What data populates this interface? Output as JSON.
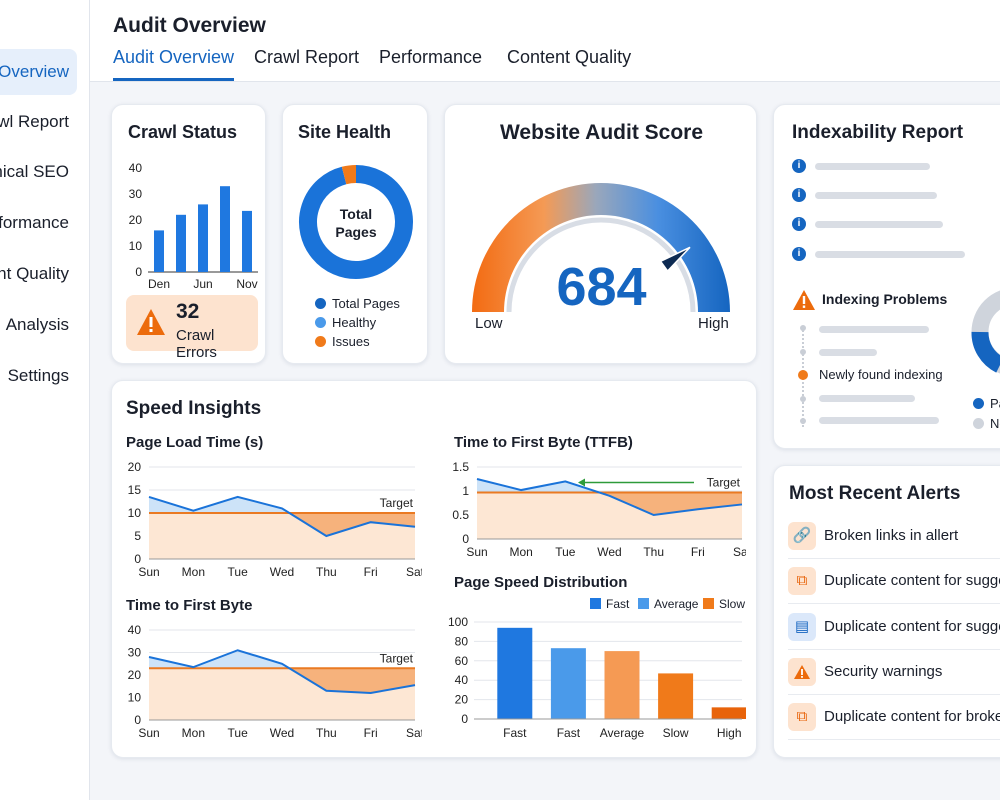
{
  "sidebar": {
    "items": [
      {
        "label": "Audit Overview",
        "active": true
      },
      {
        "label": "Crawl Report"
      },
      {
        "label": "Technical SEO"
      },
      {
        "label": "Performance"
      },
      {
        "label": "Content Quality"
      },
      {
        "label": "Analysis"
      },
      {
        "label": "Settings"
      }
    ]
  },
  "header": {
    "title": "Audit Overview",
    "tabs": [
      {
        "label": "Audit Overview",
        "active": true
      },
      {
        "label": "Crawl Report"
      },
      {
        "label": "Performance"
      },
      {
        "label": "Content Quality"
      }
    ]
  },
  "crawl_status": {
    "title": "Crawl Status",
    "errors_count": "32",
    "errors_label": "Crawl Errors"
  },
  "site_health": {
    "title": "Site Health",
    "center_line1": "Total",
    "center_line2": "Pages",
    "legend": [
      "Total Pages",
      "Healthy",
      "Issues"
    ]
  },
  "audit_score": {
    "title": "Website Audit Score",
    "score": "684",
    "min_label": "Low",
    "max_label": "High",
    "fraction": 0.8
  },
  "indexability": {
    "title": "Indexability Report",
    "problems_label": "Indexing Problems",
    "timeline_label": "Newly found indexing",
    "legend": [
      "Pa",
      "No"
    ]
  },
  "speed": {
    "title": "Speed Insights"
  },
  "alerts": {
    "title": "Most Recent Alerts",
    "items": [
      {
        "text": "Broken links in allert",
        "icon": "link-icon"
      },
      {
        "text": "Duplicate content for suggestion",
        "icon": "copy-icon"
      },
      {
        "text": "Duplicate content for suggestion",
        "icon": "document-icon"
      },
      {
        "text": "Security warnings",
        "icon": "warning-icon"
      },
      {
        "text": "Duplicate content for broken links",
        "icon": "copy-icon"
      }
    ]
  },
  "colors": {
    "primary": "#1565c0",
    "accent": "#f07a1a",
    "light_blue": "#4a9aea"
  },
  "chart_data": [
    {
      "id": "crawl",
      "type": "bar",
      "categories": [
        "Den",
        "",
        "Jun",
        "",
        "Nov"
      ],
      "values": [
        16,
        22,
        26,
        33,
        23.5
      ],
      "ylim": [
        0,
        40
      ],
      "yticks": [
        0,
        10,
        20,
        30,
        40
      ]
    },
    {
      "id": "health",
      "type": "pie",
      "labels": [
        "Total Pages",
        "Issues"
      ],
      "values": [
        96,
        4
      ]
    },
    {
      "id": "page_load",
      "type": "line",
      "title": "Page Load Time (s)",
      "categories": [
        "Sun",
        "Mon",
        "Tue",
        "Wed",
        "Thu",
        "Fri",
        "Sat"
      ],
      "values": [
        13.5,
        10.5,
        13.5,
        11,
        5,
        8,
        7
      ],
      "target": 10,
      "target_label": "Target",
      "ylim": [
        0,
        20
      ],
      "yticks": [
        0,
        5,
        10,
        15,
        20
      ]
    },
    {
      "id": "ttfb_week",
      "type": "line",
      "title": "Time to First Byte (TTFB)",
      "categories": [
        "Sun",
        "Mon",
        "Tue",
        "Wed",
        "Thu",
        "Fri",
        "Sat"
      ],
      "values": [
        1.25,
        1.02,
        1.2,
        0.9,
        0.5,
        0.62,
        0.72
      ],
      "target": 0.97,
      "target_label": "Target",
      "ylim": [
        0,
        1.5
      ],
      "yticks": [
        0,
        0.5,
        1,
        1.5
      ]
    },
    {
      "id": "ttfb",
      "type": "line",
      "title": "Time to First Byte",
      "categories": [
        "Sun",
        "Mon",
        "Tue",
        "Wed",
        "Thu",
        "Fri",
        "Sat"
      ],
      "values": [
        28,
        23.5,
        31,
        25,
        13,
        12,
        15.5
      ],
      "target": 23,
      "target_label": "Target",
      "ylim": [
        0,
        40
      ],
      "yticks": [
        0,
        10,
        20,
        30,
        40
      ]
    },
    {
      "id": "speed_dist",
      "type": "bar",
      "title": "Page Speed Distribution",
      "categories": [
        "Fast",
        "Fast",
        "Average",
        "Slow",
        "High"
      ],
      "values": [
        94,
        73,
        70,
        47,
        12
      ],
      "colors": [
        "#1f78e0",
        "#4a9aea",
        "#f59a54",
        "#f07a1a",
        "#e8630a"
      ],
      "legend": [
        {
          "name": "Fast",
          "color": "#1f78e0"
        },
        {
          "name": "Average",
          "color": "#4a9aea"
        },
        {
          "name": "Slow",
          "color": "#f07a1a"
        }
      ],
      "ylim": [
        0,
        100
      ],
      "yticks": [
        0,
        20,
        40,
        60,
        80,
        100
      ]
    }
  ]
}
